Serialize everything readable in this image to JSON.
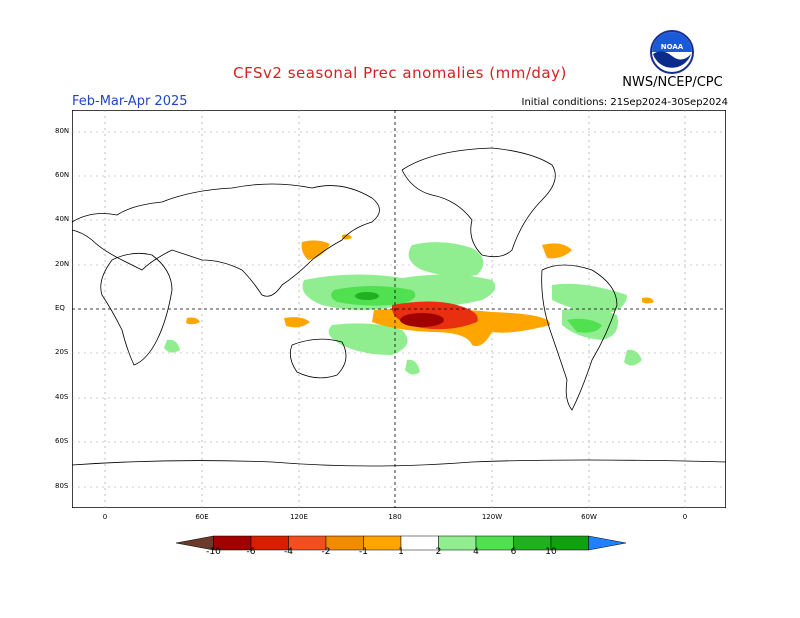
{
  "header": {
    "title": "CFSv2 seasonal Prec anomalies (mm/day)",
    "season": "Feb-Mar-Apr 2025",
    "initial_conditions": "Initial conditions: 21Sep2024-30Sep2024",
    "agency": "NWS/NCEP/CPC",
    "logo_text": "NOAA"
  },
  "map": {
    "lat_labels": [
      "80N",
      "60N",
      "40N",
      "20N",
      "EQ",
      "20S",
      "40S",
      "60S",
      "80S"
    ],
    "lon_labels": [
      "0",
      "60E",
      "120E",
      "180",
      "120W",
      "60W",
      "0"
    ],
    "projection": "cylindrical equidistant, 0 to 360 longitude"
  },
  "colorbar": {
    "labels": [
      "-10",
      "-6",
      "-4",
      "-2",
      "-1",
      "1",
      "2",
      "4",
      "6",
      "10"
    ],
    "colors": [
      "#6b3a2a",
      "#a00000",
      "#d42000",
      "#f05020",
      "#f08c00",
      "#ffa500",
      "#ffffff",
      "#90ee90",
      "#50e050",
      "#20b020",
      "#10a010",
      "#2080ff"
    ]
  },
  "colors": {
    "title": "#d42020",
    "season": "#2244cc",
    "wet_light": "#90ee90",
    "wet_mid": "#50e050",
    "wet_dark": "#20b020",
    "dry_orange": "#ffa500",
    "dry_red": "#e83010",
    "dry_darkred": "#a00000"
  }
}
